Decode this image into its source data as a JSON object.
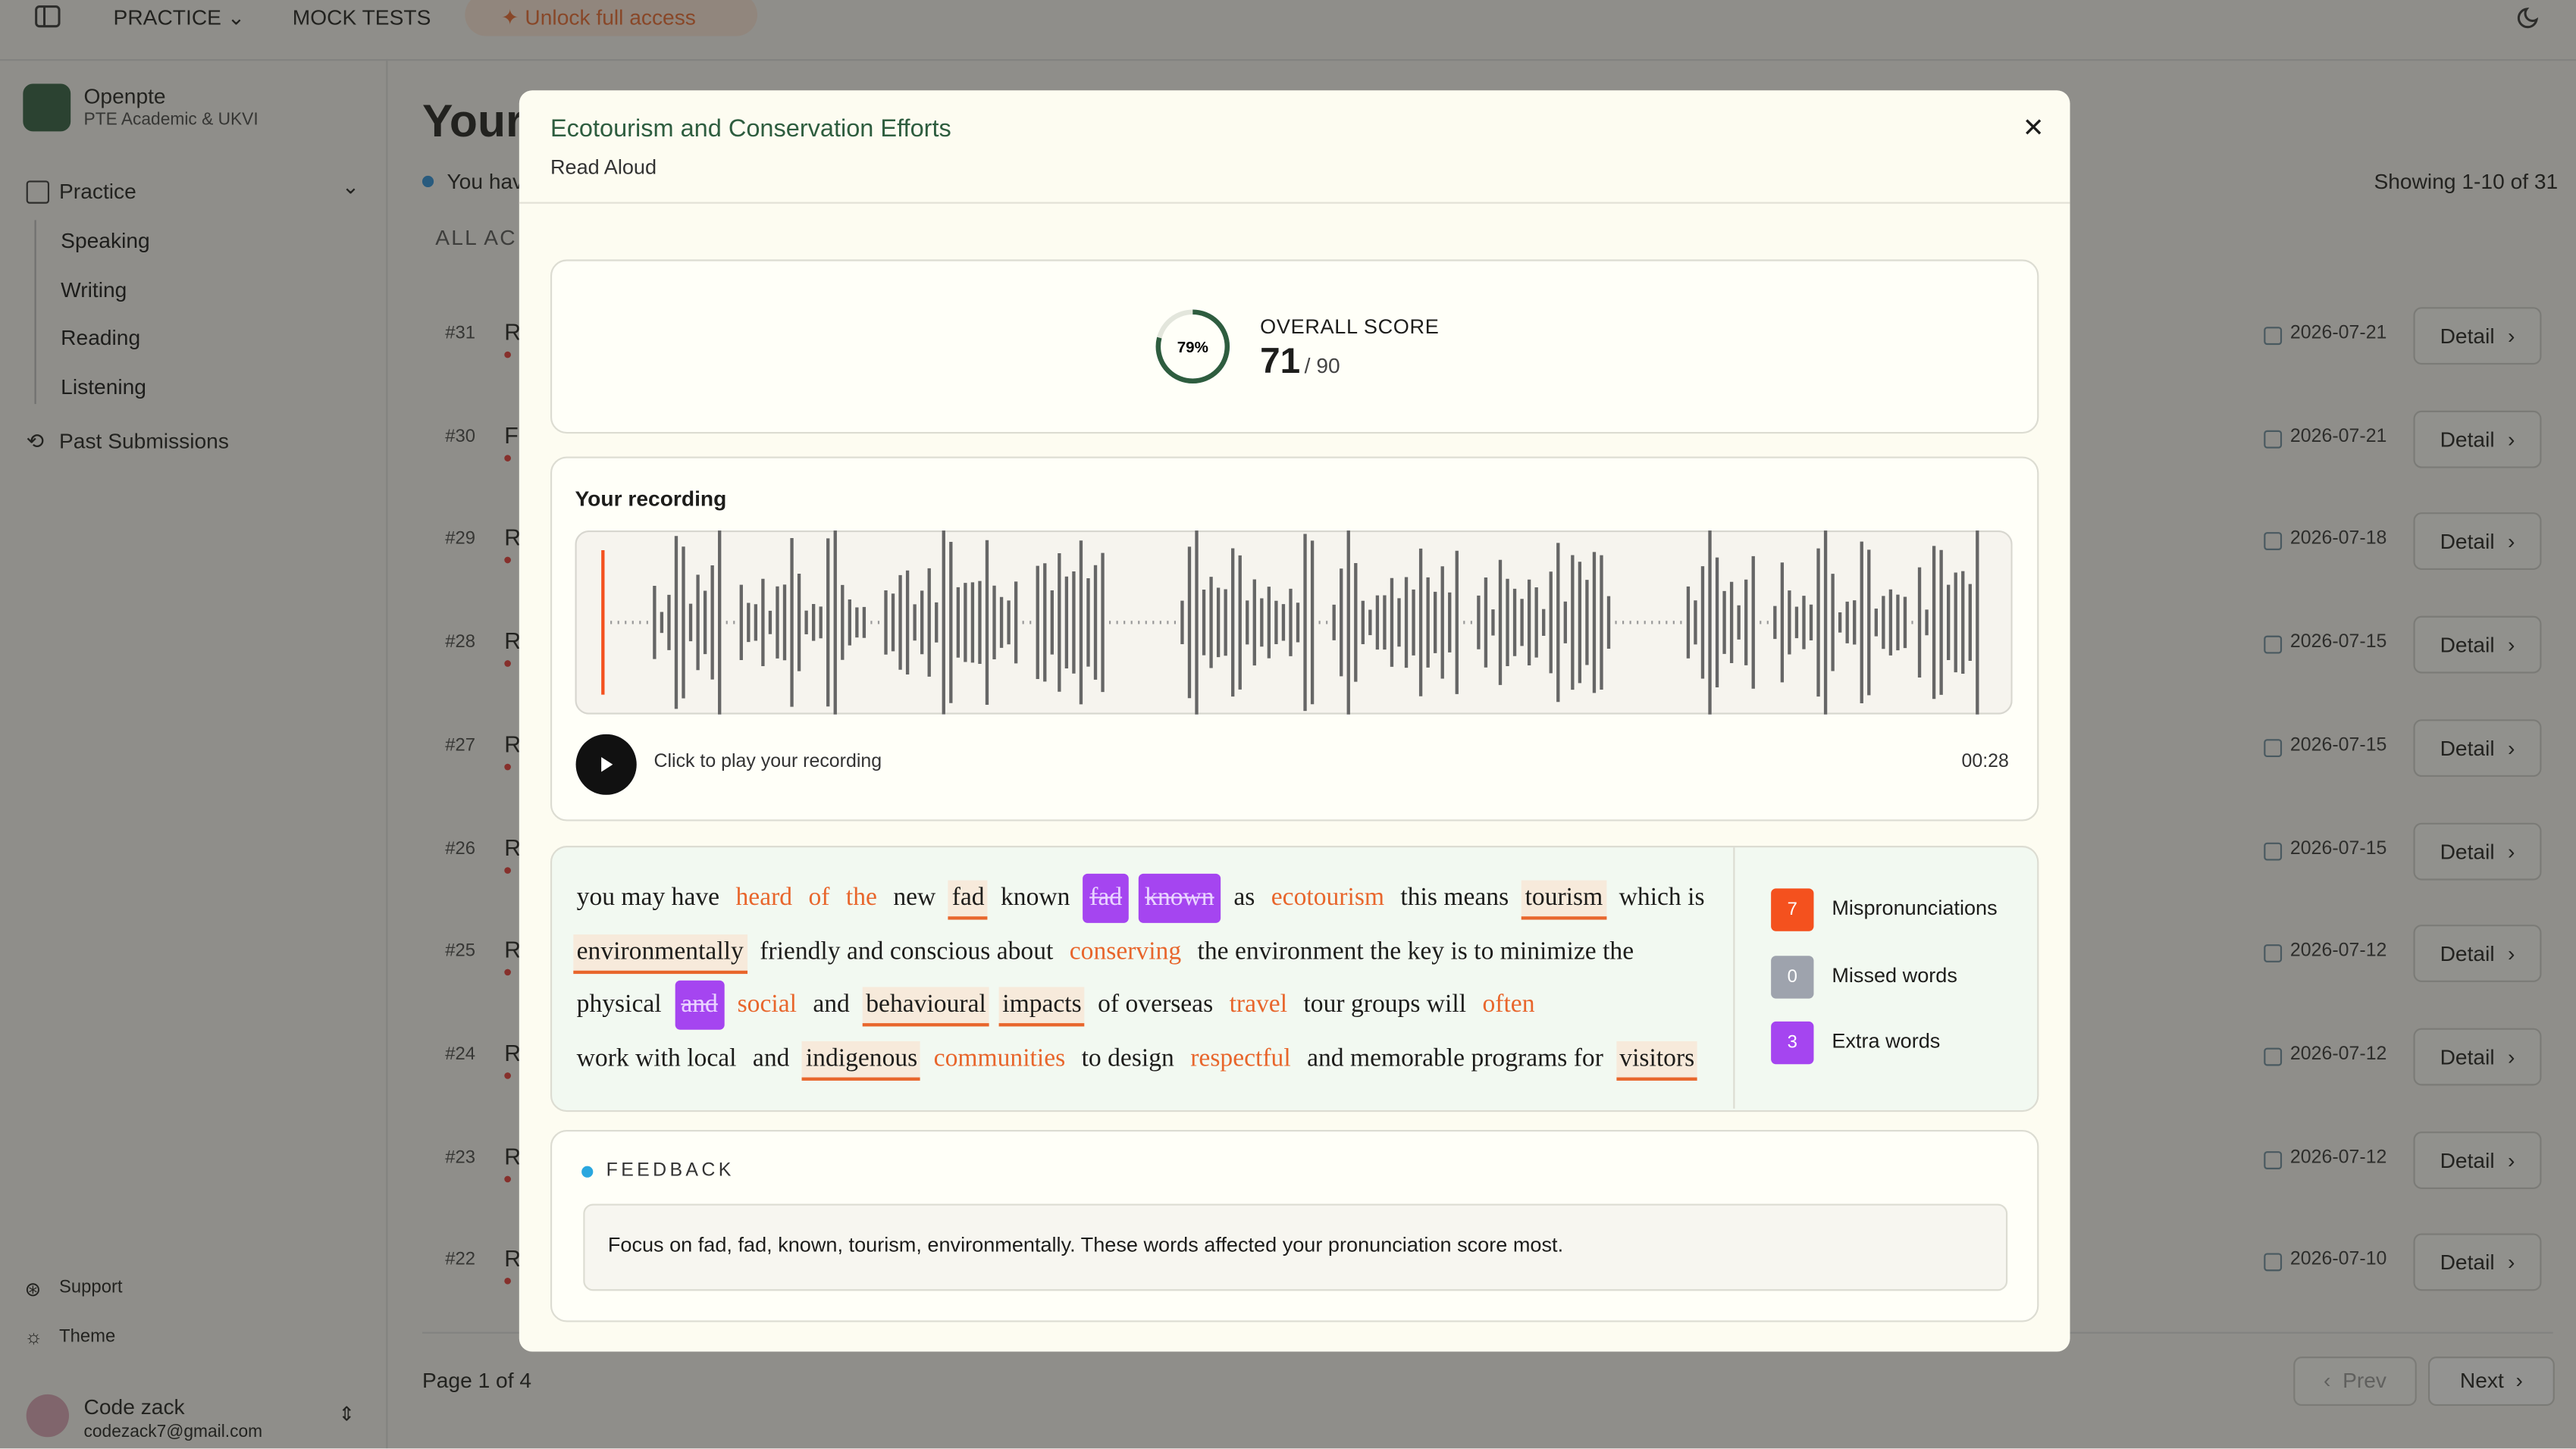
{
  "topnav": {
    "items": [
      "PRACTICE",
      "MOCK TESTS"
    ],
    "unlock": "Unlock full access"
  },
  "sidebar": {
    "brand": "Openpte",
    "subtitle": "PTE Academic & UKVI",
    "practice": "Practice",
    "practice_items": [
      "Speaking",
      "Writing",
      "Reading",
      "Listening"
    ],
    "past": "Past Submissions",
    "support": "Support",
    "theme": "Theme",
    "user": {
      "name": "Code zack",
      "email": "codezack7@gmail.com"
    }
  },
  "main": {
    "title": "Your",
    "notice": "You hav",
    "filter": "ALL AC",
    "showing": "Showing 1-10 of 31",
    "rows": [
      {
        "id": "#31",
        "initial": "R",
        "date": "2026-07-21",
        "action": "Detail"
      },
      {
        "id": "#30",
        "initial": "F",
        "date": "2026-07-21",
        "action": "Detail"
      },
      {
        "id": "#29",
        "initial": "R",
        "date": "2026-07-18",
        "action": "Detail"
      },
      {
        "id": "#28",
        "initial": "R",
        "date": "2026-07-15",
        "action": "Detail"
      },
      {
        "id": "#27",
        "initial": "R",
        "date": "2026-07-15",
        "action": "Detail"
      },
      {
        "id": "#26",
        "initial": "R",
        "date": "2026-07-15",
        "action": "Detail"
      },
      {
        "id": "#25",
        "initial": "R",
        "date": "2026-07-12",
        "action": "Detail"
      },
      {
        "id": "#24",
        "initial": "R",
        "date": "2026-07-12",
        "action": "Detail"
      },
      {
        "id": "#23",
        "initial": "R",
        "date": "2026-07-12",
        "action": "Detail"
      },
      {
        "id": "#22",
        "initial": "R",
        "date": "2026-07-10",
        "action": "Detail"
      }
    ],
    "pagination": {
      "page": "Page 1 of 4",
      "prev": "Prev",
      "next": "Next"
    }
  },
  "modal": {
    "title": "Ecotourism and Conservation Efforts",
    "subtitle": "Read Aloud",
    "score": {
      "ring": {
        "value": 79,
        "label": "79%"
      },
      "label": "OVERALL SCORE",
      "value": "71",
      "max": "/ 90"
    },
    "recording": {
      "title": "Your recording",
      "hint": "Click to play your recording",
      "duration": "00:28"
    },
    "transcript": [
      {
        "text": "you may have",
        "kind": "plain"
      },
      {
        "text": "heard",
        "kind": "weak"
      },
      {
        "text": "of",
        "kind": "weak"
      },
      {
        "text": "the",
        "kind": "weak"
      },
      {
        "text": "new",
        "kind": "plain"
      },
      {
        "text": "fad",
        "kind": "mis"
      },
      {
        "text": "known",
        "kind": "plain"
      },
      {
        "text": "fad",
        "kind": "extra"
      },
      {
        "text": "known",
        "kind": "extra"
      },
      {
        "text": "as",
        "kind": "plain"
      },
      {
        "text": "ecotourism",
        "kind": "weak"
      },
      {
        "text": "this means",
        "kind": "plain"
      },
      {
        "text": "tourism",
        "kind": "mis"
      },
      {
        "text": "which is",
        "kind": "plain"
      },
      {
        "text": "environmentally",
        "kind": "mis"
      },
      {
        "text": "friendly and conscious about",
        "kind": "plain"
      },
      {
        "text": "conserving",
        "kind": "weak"
      },
      {
        "text": "the environment the key is to minimize the",
        "kind": "plain"
      },
      {
        "text": "physical",
        "kind": "plain"
      },
      {
        "text": "and",
        "kind": "extra"
      },
      {
        "text": "social",
        "kind": "weak"
      },
      {
        "text": "and",
        "kind": "plain"
      },
      {
        "text": "behavioural",
        "kind": "mis"
      },
      {
        "text": "impacts",
        "kind": "mis"
      },
      {
        "text": "of overseas",
        "kind": "plain"
      },
      {
        "text": "travel",
        "kind": "weak"
      },
      {
        "text": "tour groups will",
        "kind": "plain"
      },
      {
        "text": "often",
        "kind": "weak"
      },
      {
        "text": "work with local",
        "kind": "plain"
      },
      {
        "text": "and",
        "kind": "plain"
      },
      {
        "text": "indigenous",
        "kind": "mis"
      },
      {
        "text": "communities",
        "kind": "weak"
      },
      {
        "text": "to design",
        "kind": "plain"
      },
      {
        "text": "respectful",
        "kind": "weak"
      },
      {
        "text": "and memorable programs for",
        "kind": "plain"
      },
      {
        "text": "visitors",
        "kind": "mis"
      }
    ],
    "legend": [
      {
        "count": 7,
        "label": "Mispronunciations",
        "color": "#f4511e"
      },
      {
        "count": 0,
        "label": "Missed words",
        "color": "#9ea3ad"
      },
      {
        "count": 3,
        "label": "Extra words",
        "color": "#a545f0"
      }
    ],
    "feedback": {
      "title": "FEEDBACK",
      "text": "Focus on fad, fad, known, tourism, environmentally. These words affected your pronunciation score most."
    }
  }
}
